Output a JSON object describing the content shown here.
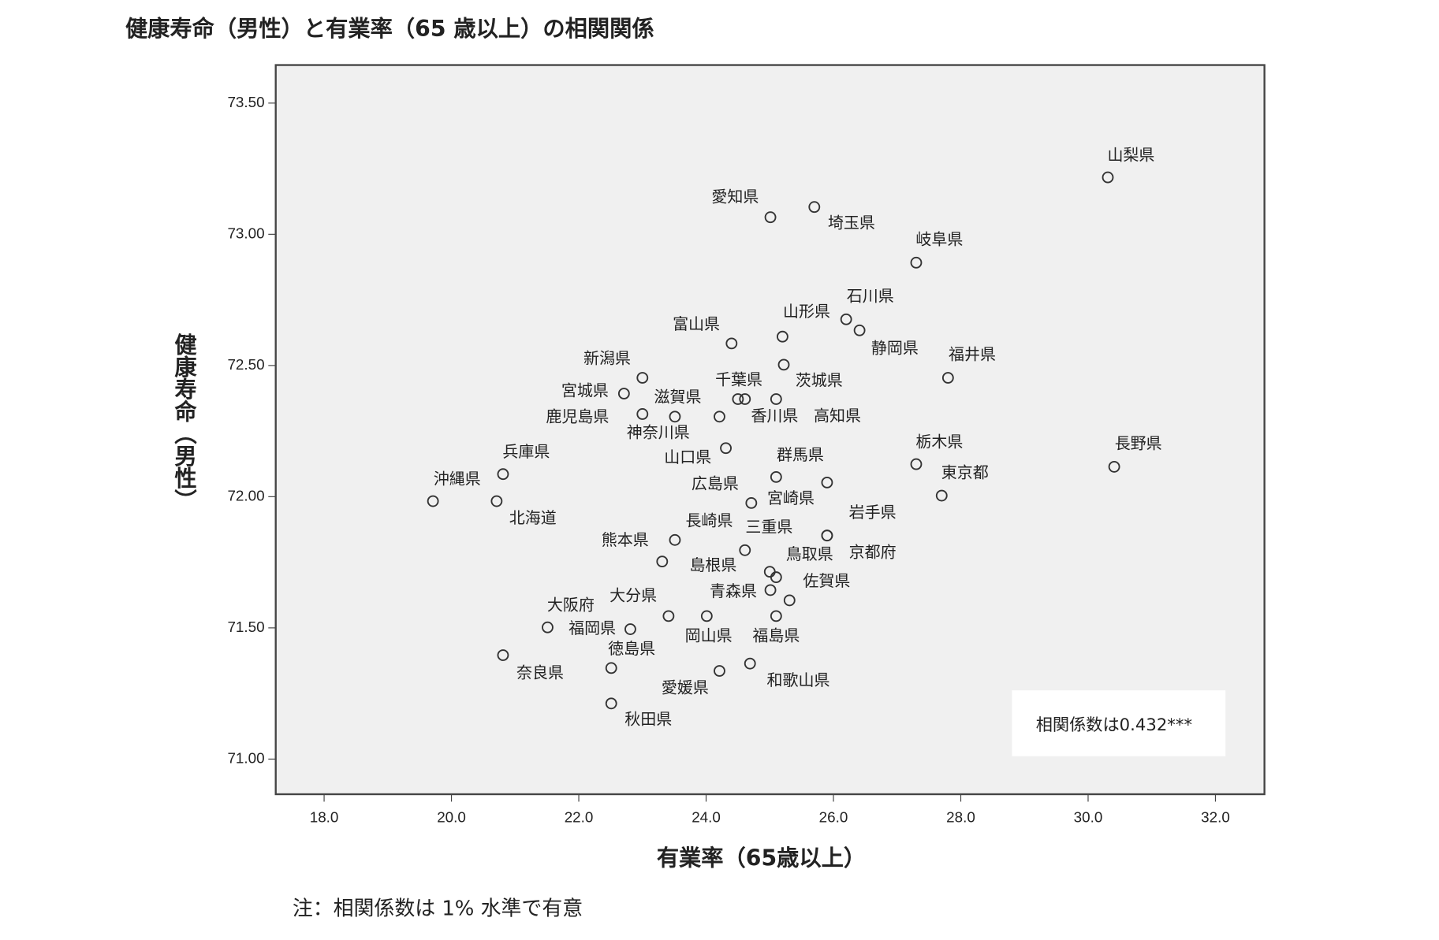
{
  "chart_data": {
    "type": "scatter",
    "title": "健康寿命（男性）と有業率（65 歳以上）の相関関係",
    "x_label": "有業率（65歳以上）",
    "y_label": "健康寿命（男性）",
    "annotation": "相関係数は0.432***",
    "note": "注：相関係数は 1% 水準で有意",
    "point_labels": [
      "山梨県",
      "愛知県",
      "埼玉県",
      "岐阜県",
      "石川県",
      "静岡県",
      "山形県",
      "茨城県",
      "千葉県",
      "香川県",
      "高知県",
      "富山県",
      "新潟県",
      "宮城県",
      "鹿児島県",
      "滋賀県",
      "神奈川県",
      "山口県",
      "群馬県",
      "宮崎県",
      "広島県",
      "栃木県",
      "東京都",
      "長野県",
      "福井県",
      "兵庫県",
      "沖縄県",
      "北海道",
      "長崎県",
      "熊本県",
      "三重県",
      "島根県",
      "鳥取県",
      "佐賀県",
      "青森県",
      "京都府",
      "岩手県",
      "大分県",
      "大阪府",
      "福岡県",
      "岡山県",
      "福島県",
      "徳島県",
      "奈良県",
      "愛媛県",
      "和歌山県",
      "秋田県"
    ],
    "x": [
      30.31,
      25.01,
      25.7,
      27.3,
      26.2,
      26.41,
      25.2,
      25.22,
      24.5,
      24.61,
      25.1,
      24.4,
      23.0,
      22.71,
      23.0,
      23.51,
      24.21,
      24.31,
      25.1,
      25.9,
      24.71,
      27.3,
      27.7,
      30.41,
      27.8,
      20.81,
      19.71,
      20.71,
      23.51,
      23.31,
      24.61,
      25.0,
      25.1,
      25.31,
      25.01,
      25.9,
      25.9,
      23.41,
      21.51,
      22.81,
      24.01,
      25.1,
      22.51,
      20.81,
      24.21,
      24.69,
      22.51
    ],
    "values": [
      73.217,
      73.065,
      73.104,
      72.892,
      72.676,
      72.634,
      72.61,
      72.503,
      72.372,
      72.372,
      72.372,
      72.584,
      72.453,
      72.393,
      72.315,
      72.305,
      72.305,
      72.185,
      72.075,
      72.054,
      71.976,
      72.124,
      72.004,
      72.114,
      72.453,
      72.086,
      71.983,
      71.983,
      71.835,
      71.753,
      71.796,
      71.714,
      71.693,
      71.605,
      71.644,
      71.852,
      71.852,
      71.545,
      71.502,
      71.495,
      71.545,
      71.545,
      71.347,
      71.396,
      71.336,
      71.364,
      71.212
    ],
    "color": "#333333",
    "xlim": [
      17.24,
      32.77
    ],
    "ylim": [
      70.866,
      73.645
    ],
    "xticks": [
      {
        "value": 18,
        "label": "18.0"
      },
      {
        "value": 20,
        "label": "20.0"
      },
      {
        "value": 22,
        "label": "22.0"
      },
      {
        "value": 24,
        "label": "24.0"
      },
      {
        "value": 26,
        "label": "26.0"
      },
      {
        "value": 28,
        "label": "28.0"
      },
      {
        "value": 30,
        "label": "30.0"
      },
      {
        "value": 32,
        "label": "32.0"
      }
    ],
    "yticks": [
      {
        "value": 71,
        "label": "71.00"
      },
      {
        "value": 71.5,
        "label": "71.50"
      },
      {
        "value": 72,
        "label": "72.00"
      },
      {
        "value": 72.5,
        "label": "72.50"
      },
      {
        "value": 73,
        "label": "73.00"
      },
      {
        "value": 73.5,
        "label": "73.50"
      }
    ]
  }
}
